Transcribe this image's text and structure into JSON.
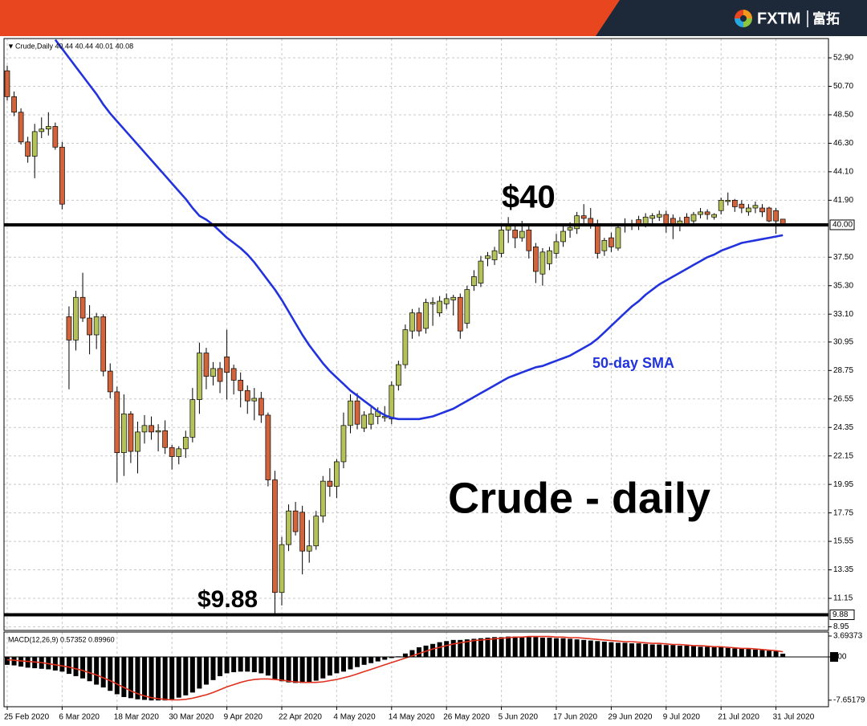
{
  "header": {
    "brand": "FXTM",
    "brand_cn": "富拓"
  },
  "chart_data": [
    {
      "type": "candlestick",
      "title": "Crude - daily",
      "legend_text": "Crude,Daily 40.44 40.44 40.01 40.08",
      "categories": [
        "25 Feb 2020",
        null,
        null,
        null,
        null,
        null,
        null,
        null,
        "6 Mar 2020",
        null,
        null,
        null,
        null,
        null,
        null,
        null,
        "18 Mar 2020",
        null,
        null,
        null,
        null,
        null,
        null,
        null,
        "30 Mar 2020",
        null,
        null,
        null,
        null,
        null,
        null,
        null,
        "9 Apr 2020",
        null,
        null,
        null,
        null,
        null,
        null,
        null,
        "22 Apr 2020",
        null,
        null,
        null,
        null,
        null,
        null,
        null,
        "4 May 2020",
        null,
        null,
        null,
        null,
        null,
        null,
        null,
        "14 May 2020",
        null,
        null,
        null,
        null,
        null,
        null,
        null,
        "26 May 2020",
        null,
        null,
        null,
        null,
        null,
        null,
        null,
        "5 Jun 2020",
        null,
        null,
        null,
        null,
        null,
        null,
        null,
        "17 Jun 2020",
        null,
        null,
        null,
        null,
        null,
        null,
        null,
        "29 Jun 2020",
        null,
        null,
        null,
        null,
        null,
        null,
        null,
        "9 Jul 2020",
        null,
        null,
        null,
        null,
        null,
        null,
        null,
        "21 Jul 2020",
        null,
        null,
        null,
        null,
        null,
        null,
        null,
        "31 Jul 2020",
        null
      ],
      "open": [
        51.9,
        49.9,
        48.7,
        46.4,
        45.3,
        47.2,
        47.4,
        47.6,
        46.0,
        32.9,
        31.1,
        34.4,
        32.8,
        31.5,
        32.9,
        28.7,
        27.1,
        22.4,
        25.4,
        22.5,
        24.0,
        24.5,
        24.0,
        24.1,
        22.8,
        22.1,
        22.7,
        23.6,
        26.5,
        30.1,
        28.3,
        28.9,
        29.8,
        28.9,
        28.0,
        27.2,
        26.4,
        26.6,
        25.3,
        20.3,
        11.6,
        15.3,
        17.9,
        17.8,
        14.8,
        15.2,
        17.5,
        20.2,
        19.8,
        21.7,
        24.5,
        26.4,
        24.3,
        24.6,
        25.2,
        25.1,
        25.0,
        27.6,
        29.2,
        31.8,
        33.2,
        32.0,
        33.9,
        33.2,
        33.9,
        34.2,
        34.4,
        32.4,
        35.3,
        35.5,
        37.4,
        37.3,
        37.8,
        39.6,
        39.6,
        39.0,
        39.6,
        38.3,
        36.2,
        37.0,
        37.8,
        38.7,
        39.6,
        39.7,
        40.7,
        40.5,
        40.1,
        38.0,
        39.0,
        38.2,
        39.9,
        39.9,
        40.4,
        40.0,
        40.5,
        40.6,
        40.8,
        40.5,
        40.1,
        40.6,
        40.3,
        40.8,
        41.0,
        40.6,
        41.1,
        41.8,
        41.9,
        41.6,
        41.0,
        41.3,
        41.3,
        41.3,
        41.1,
        40.44
      ],
      "high": [
        52.3,
        50.3,
        49.0,
        46.8,
        47.8,
        48.3,
        48.7,
        47.9,
        46.4,
        33.7,
        34.9,
        36.3,
        33.8,
        33.2,
        33.1,
        29.3,
        27.5,
        26.9,
        25.6,
        24.8,
        25.3,
        25.2,
        24.6,
        24.9,
        23.0,
        22.9,
        24.1,
        27.4,
        30.9,
        30.5,
        29.4,
        29.4,
        31.9,
        29.2,
        28.6,
        27.6,
        27.4,
        27.1,
        25.5,
        21.0,
        15.9,
        18.4,
        18.6,
        18.3,
        17.2,
        17.9,
        20.6,
        21.2,
        21.9,
        25.5,
        26.9,
        27.0,
        25.6,
        25.9,
        25.9,
        26.0,
        27.9,
        29.5,
        32.3,
        33.5,
        33.6,
        34.3,
        34.4,
        34.5,
        34.7,
        34.6,
        34.7,
        35.3,
        36.5,
        37.6,
        37.9,
        38.3,
        40.0,
        40.6,
        40.1,
        40.3,
        39.9,
        38.6,
        38.2,
        38.3,
        39.3,
        39.9,
        40.2,
        41.0,
        41.6,
        41.3,
        40.4,
        39.0,
        39.4,
        40.0,
        40.5,
        40.4,
        40.7,
        40.9,
        40.9,
        41.1,
        41.1,
        40.8,
        40.6,
        40.9,
        41.0,
        41.3,
        41.2,
        40.9,
        42.1,
        42.5,
        42.0,
        41.9,
        41.6,
        41.8,
        41.6,
        41.4,
        41.3,
        40.44
      ],
      "low": [
        49.6,
        48.4,
        46.2,
        44.8,
        43.6,
        46.7,
        46.9,
        45.8,
        41.2,
        27.3,
        30.3,
        32.5,
        30.0,
        30.4,
        28.3,
        26.6,
        20.1,
        20.6,
        21.6,
        20.8,
        23.1,
        23.4,
        22.5,
        22.3,
        21.1,
        21.5,
        22.0,
        23.2,
        25.4,
        27.3,
        27.6,
        27.0,
        26.5,
        26.9,
        25.9,
        25.4,
        24.9,
        24.7,
        19.8,
        9.88,
        10.6,
        14.8,
        16.0,
        13.0,
        13.9,
        14.9,
        17.0,
        19.0,
        18.9,
        21.2,
        23.9,
        24.2,
        24.0,
        24.2,
        24.6,
        24.8,
        24.6,
        27.2,
        28.9,
        31.2,
        31.4,
        31.6,
        32.2,
        32.9,
        33.5,
        33.0,
        31.2,
        32.0,
        34.9,
        35.2,
        36.8,
        36.9,
        37.5,
        38.6,
        38.2,
        38.7,
        37.4,
        35.5,
        35.3,
        36.5,
        37.4,
        38.3,
        39.0,
        39.3,
        40.1,
        39.7,
        37.4,
        37.6,
        37.9,
        38.0,
        39.4,
        39.6,
        39.6,
        39.8,
        40.1,
        40.3,
        39.4,
        38.9,
        39.5,
        39.9,
        40.0,
        40.5,
        40.4,
        40.4,
        40.8,
        41.5,
        41.0,
        40.9,
        40.7,
        40.9,
        40.6,
        40.2,
        39.3,
        40.01
      ],
      "close": [
        49.9,
        48.7,
        46.4,
        45.3,
        47.2,
        47.4,
        47.6,
        46.0,
        41.6,
        31.1,
        34.4,
        32.8,
        31.5,
        32.9,
        28.7,
        27.1,
        22.4,
        25.4,
        22.5,
        24.0,
        24.5,
        24.0,
        24.1,
        22.8,
        22.1,
        22.7,
        23.6,
        26.5,
        30.1,
        28.3,
        28.9,
        27.9,
        28.6,
        28.0,
        27.2,
        26.4,
        26.6,
        25.3,
        20.3,
        11.6,
        15.3,
        17.9,
        16.3,
        14.8,
        15.2,
        17.5,
        20.2,
        19.8,
        21.7,
        24.5,
        26.4,
        24.6,
        25.3,
        25.4,
        25.6,
        25.2,
        27.6,
        29.2,
        31.9,
        33.2,
        31.8,
        34.0,
        34.0,
        34.1,
        34.3,
        34.4,
        31.8,
        35.0,
        36.0,
        37.2,
        37.6,
        38.0,
        39.6,
        40.1,
        39.0,
        39.5,
        38.0,
        36.4,
        37.9,
        38.0,
        38.7,
        39.5,
        39.8,
        40.7,
        40.5,
        40.0,
        37.8,
        38.8,
        38.3,
        39.8,
        40.1,
        40.0,
        39.9,
        40.6,
        40.7,
        40.8,
        40.0,
        40.0,
        40.3,
        40.1,
        40.8,
        41.0,
        40.8,
        40.8,
        41.9,
        41.9,
        41.4,
        41.3,
        41.3,
        41.5,
        41.0,
        40.3,
        40.3,
        40.08
      ],
      "colors": {
        "up": "#b5c25a",
        "down": "#d2643c"
      },
      "series": [
        {
          "name": "50-day SMA",
          "color": "#2233dd",
          "values": [
            null,
            null,
            null,
            null,
            null,
            null,
            null,
            54.3,
            53.6,
            52.9,
            52.2,
            51.5,
            50.8,
            50.1,
            49.3,
            48.6,
            48.0,
            47.4,
            46.8,
            46.2,
            45.6,
            45.0,
            44.4,
            43.8,
            43.2,
            42.6,
            42.0,
            41.3,
            40.7,
            40.4,
            40.0,
            39.5,
            39.0,
            38.6,
            38.2,
            37.7,
            37.1,
            36.4,
            35.7,
            35.0,
            34.2,
            33.3,
            32.4,
            31.5,
            30.7,
            30.0,
            29.3,
            28.7,
            28.2,
            27.7,
            27.2,
            26.8,
            26.4,
            26.0,
            25.6,
            25.3,
            25.1,
            25.0,
            25.0,
            25.0,
            25.0,
            25.1,
            25.2,
            25.4,
            25.6,
            25.8,
            26.1,
            26.4,
            26.7,
            27.0,
            27.3,
            27.6,
            27.9,
            28.2,
            28.4,
            28.6,
            28.8,
            29.0,
            29.1,
            29.3,
            29.5,
            29.7,
            29.9,
            30.2,
            30.5,
            30.8,
            31.2,
            31.7,
            32.2,
            32.7,
            33.2,
            33.7,
            34.1,
            34.6,
            35.0,
            35.4,
            35.7,
            36.0,
            36.3,
            36.6,
            36.9,
            37.2,
            37.5,
            37.7,
            38.0,
            38.2,
            38.4,
            38.6,
            38.7,
            38.8,
            38.9,
            39.0,
            39.1,
            39.2
          ]
        }
      ],
      "hlines": [
        {
          "value": 40,
          "label": "40.00"
        },
        {
          "value": 9.88,
          "label": "9.88"
        }
      ],
      "annotations": [
        "$40",
        "$9.88"
      ],
      "ylim": [
        8.67,
        54.39
      ],
      "yticks": [
        {
          "value": 52.9,
          "label": "52.90"
        },
        {
          "value": 50.7,
          "label": "50.70"
        },
        {
          "value": 48.5,
          "label": "48.50"
        },
        {
          "value": 46.3,
          "label": "46.30"
        },
        {
          "value": 44.1,
          "label": "44.10"
        },
        {
          "value": 41.9,
          "label": "41.90"
        },
        {
          "value": 37.5,
          "label": "37.50"
        },
        {
          "value": 35.3,
          "label": "35.30"
        },
        {
          "value": 33.1,
          "label": "33.10"
        },
        30.95,
        28.75,
        26.55,
        24.35,
        22.15,
        19.95,
        17.75,
        15.55,
        13.35,
        11.15,
        8.95
      ],
      "grid": true
    },
    {
      "type": "macd",
      "label": "MACD(12,26,9) 0.57352 0.89960",
      "values": [
        -1.4,
        -1.5,
        -1.7,
        -1.9,
        -2.0,
        -2.1,
        -2.2,
        -2.4,
        -2.6,
        -3.0,
        -3.4,
        -3.8,
        -4.3,
        -4.9,
        -5.4,
        -6.0,
        -6.6,
        -7.1,
        -7.3,
        -7.5,
        -7.6,
        -7.7,
        -7.7,
        -7.7,
        -7.5,
        -7.2,
        -6.8,
        -6.3,
        -5.6,
        -4.9,
        -4.1,
        -3.4,
        -2.9,
        -2.7,
        -2.6,
        -2.6,
        -2.7,
        -2.9,
        -3.3,
        -3.9,
        -4.3,
        -4.5,
        -4.6,
        -4.6,
        -4.5,
        -4.2,
        -3.8,
        -3.3,
        -2.9,
        -2.6,
        -2.2,
        -1.8,
        -1.4,
        -1.1,
        -0.8,
        -0.5,
        -0.2,
        0.1,
        0.6,
        1.2,
        1.7,
        2.0,
        2.3,
        2.6,
        2.8,
        3.0,
        3.0,
        3.1,
        3.2,
        3.3,
        3.4,
        3.5,
        3.5,
        3.6,
        3.6,
        3.6,
        3.5,
        3.5,
        3.4,
        3.4,
        3.3,
        3.3,
        3.2,
        3.1,
        3.0,
        2.9,
        2.8,
        2.7,
        2.6,
        2.5,
        2.5,
        2.4,
        2.4,
        2.3,
        2.2,
        2.2,
        2.1,
        2.1,
        2.0,
        2.0,
        1.9,
        1.8,
        1.8,
        1.7,
        1.7,
        1.6,
        1.5,
        1.5,
        1.4,
        1.3,
        1.2,
        1.1,
        1.0,
        0.57352
      ],
      "color": "#000000",
      "signal": [
        -0.5,
        -0.6,
        -0.7,
        -0.8,
        -0.9,
        -1.0,
        -1.2,
        -1.4,
        -1.6,
        -1.8,
        -2.1,
        -2.4,
        -2.8,
        -3.2,
        -3.7,
        -4.2,
        -4.8,
        -5.4,
        -6.0,
        -6.5,
        -6.9,
        -7.2,
        -7.4,
        -7.5,
        -7.6,
        -7.6,
        -7.5,
        -7.3,
        -7.0,
        -6.7,
        -6.3,
        -5.8,
        -5.3,
        -4.9,
        -4.5,
        -4.2,
        -4.0,
        -3.9,
        -3.9,
        -4.0,
        -4.1,
        -4.3,
        -4.4,
        -4.5,
        -4.5,
        -4.5,
        -4.4,
        -4.2,
        -4.0,
        -3.7,
        -3.4,
        -3.0,
        -2.6,
        -2.2,
        -1.8,
        -1.4,
        -1.0,
        -0.6,
        -0.2,
        0.2,
        0.6,
        1.0,
        1.4,
        1.7,
        2.0,
        2.3,
        2.5,
        2.7,
        2.9,
        3.0,
        3.1,
        3.2,
        3.3,
        3.4,
        3.5,
        3.5,
        3.6,
        3.6,
        3.6,
        3.6,
        3.5,
        3.5,
        3.4,
        3.4,
        3.3,
        3.2,
        3.1,
        3.0,
        2.9,
        2.8,
        2.7,
        2.7,
        2.6,
        2.5,
        2.4,
        2.4,
        2.3,
        2.2,
        2.2,
        2.1,
        2.0,
        2.0,
        1.9,
        1.8,
        1.8,
        1.7,
        1.6,
        1.5,
        1.5,
        1.4,
        1.3,
        1.2,
        1.1,
        0.8996
      ],
      "signal_color": "#e0301e",
      "ylim": [
        -8.81,
        4.4
      ],
      "yticks": [
        3.69373,
        {
          "value": 0,
          "label": "0.00"
        },
        -7.65179
      ]
    }
  ]
}
